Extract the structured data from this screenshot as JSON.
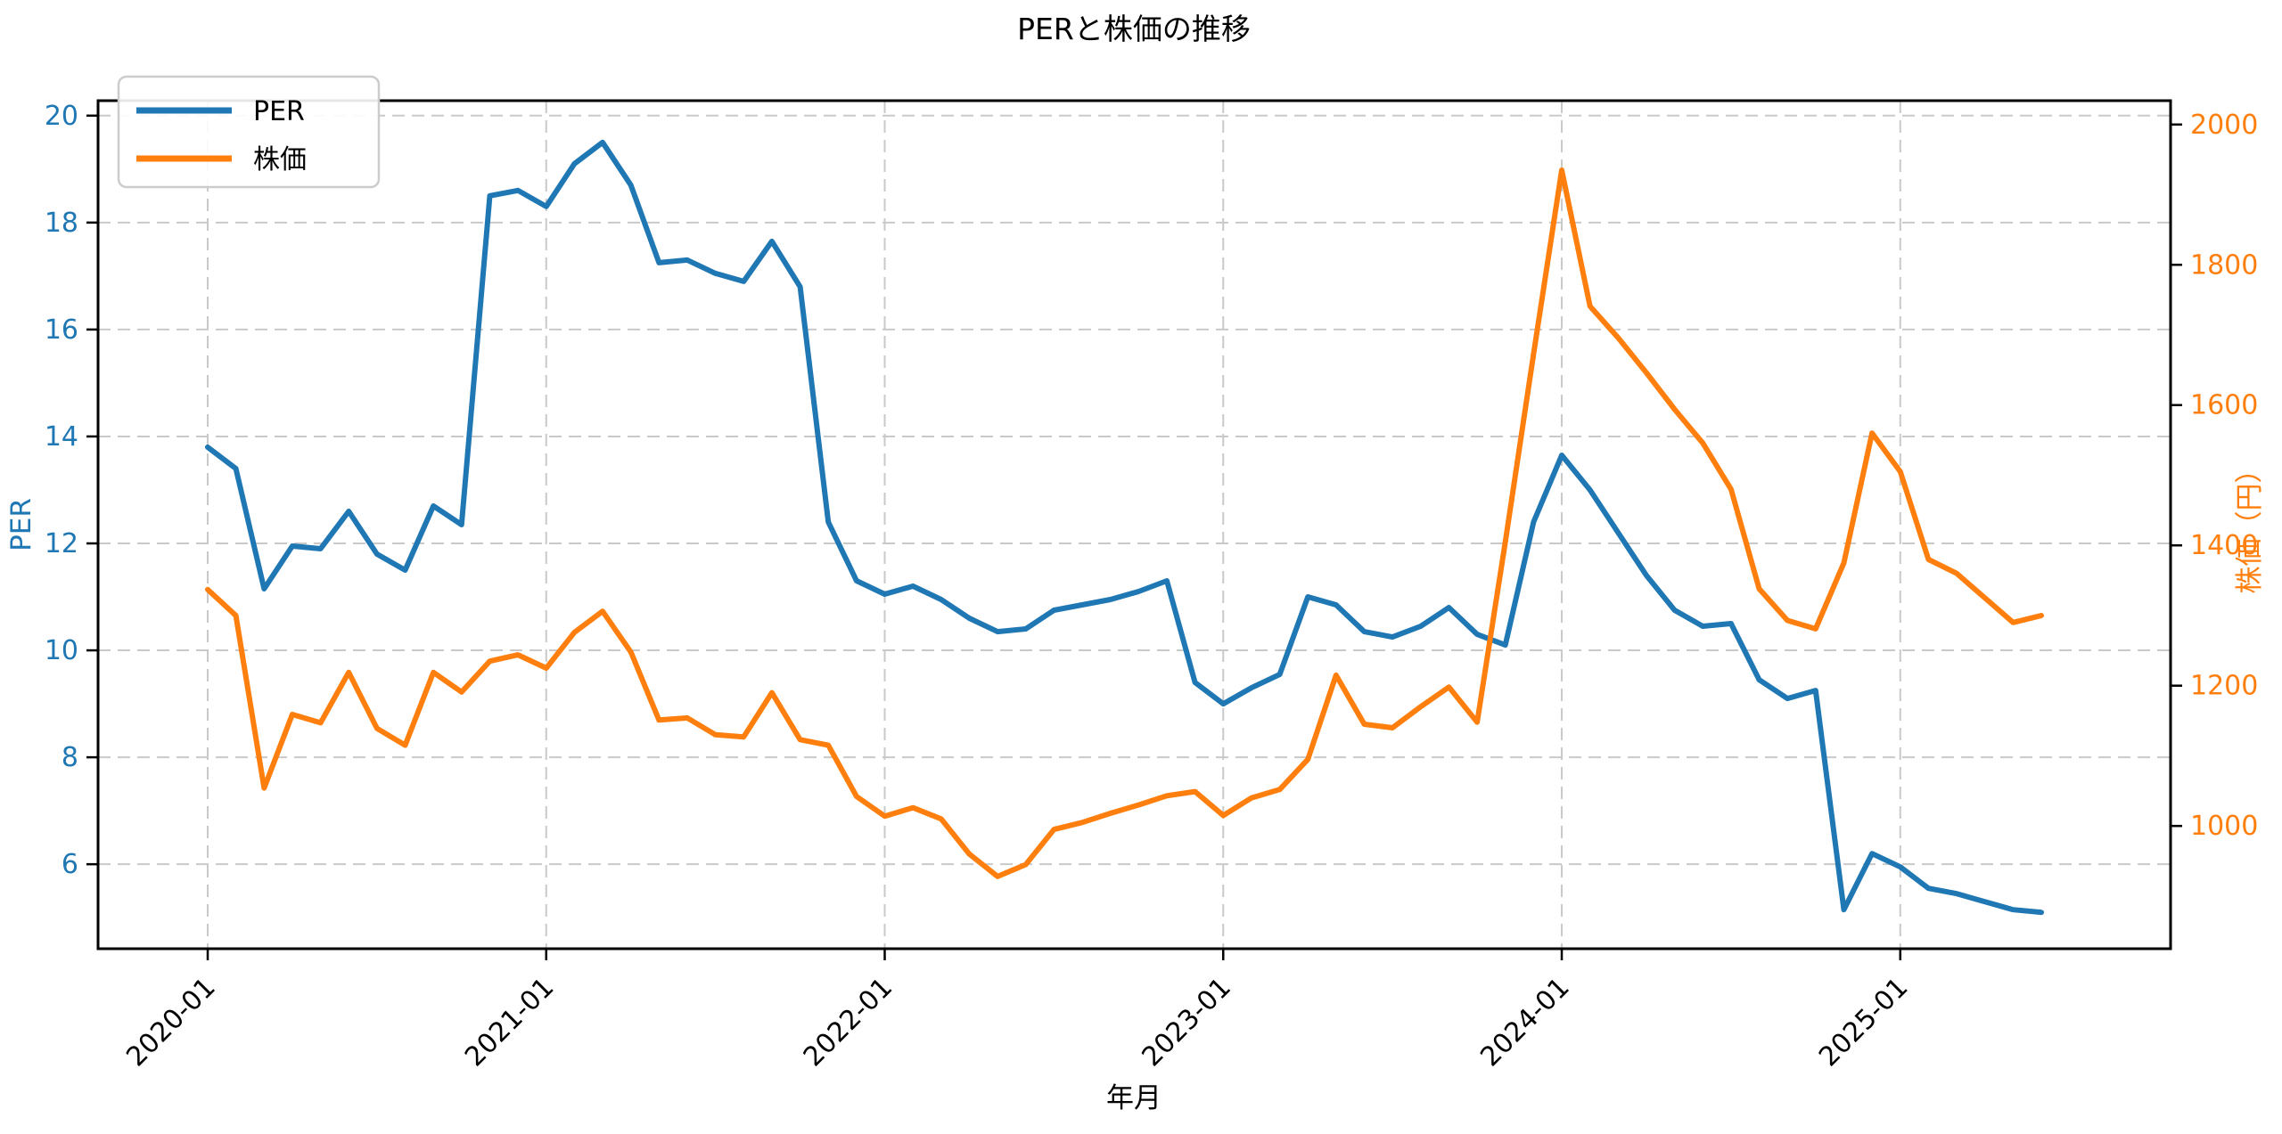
{
  "title": "PERと株価の推移",
  "legend": {
    "items": [
      "PER",
      "株価"
    ]
  },
  "colors": {
    "per_line": "#1f77b4",
    "price_line": "#ff7f0e",
    "grid": "#c9c9c9",
    "spine": "#000000",
    "tick_label_left": "#1f77b4",
    "tick_label_right": "#ff7f0e",
    "tick_label_x": "#000000",
    "background": "#ffffff"
  },
  "chart_data": {
    "type": "line",
    "title": "PERと株価の推移",
    "xlabel": "年月",
    "ylabel_left": "PER",
    "ylabel_right": "株価（円）",
    "grid": true,
    "legend_position": "upper left",
    "x": [
      "2020-01",
      "2020-02",
      "2020-03",
      "2020-04",
      "2020-05",
      "2020-06",
      "2020-07",
      "2020-08",
      "2020-09",
      "2020-10",
      "2020-11",
      "2020-12",
      "2021-01",
      "2021-02",
      "2021-03",
      "2021-04",
      "2021-05",
      "2021-06",
      "2021-07",
      "2021-08",
      "2021-09",
      "2021-10",
      "2021-11",
      "2021-12",
      "2022-01",
      "2022-02",
      "2022-03",
      "2022-04",
      "2022-05",
      "2022-06",
      "2022-07",
      "2022-08",
      "2022-09",
      "2022-10",
      "2022-11",
      "2022-12",
      "2023-01",
      "2023-02",
      "2023-03",
      "2023-04",
      "2023-05",
      "2023-06",
      "2023-07",
      "2023-08",
      "2023-09",
      "2023-10",
      "2023-11",
      "2023-12",
      "2024-01",
      "2024-02",
      "2024-03",
      "2024-04",
      "2024-05",
      "2024-06",
      "2024-07",
      "2024-08",
      "2024-09",
      "2024-10",
      "2024-11",
      "2024-12",
      "2025-01",
      "2025-02",
      "2025-03",
      "2025-04",
      "2025-05",
      "2025-06"
    ],
    "x_ticks": [
      "2020-01",
      "2021-01",
      "2022-01",
      "2023-01",
      "2024-01",
      "2025-01"
    ],
    "x_tick_indices": [
      0,
      12,
      24,
      36,
      48,
      60
    ],
    "left_ticks": [
      20,
      18,
      16,
      14,
      12,
      10,
      8,
      6
    ],
    "right_ticks": [
      2000,
      1800,
      1600,
      1400,
      1200,
      1000
    ],
    "left_range": [
      4.42,
      20.28
    ],
    "right_range": [
      825,
      2034
    ],
    "series": [
      {
        "name": "PER",
        "axis": "left",
        "color": "#1f77b4",
        "values": [
          13.8,
          13.4,
          11.15,
          11.95,
          11.9,
          12.6,
          11.8,
          11.5,
          12.7,
          12.35,
          18.5,
          18.6,
          18.3,
          19.1,
          19.5,
          18.7,
          17.25,
          17.3,
          17.05,
          16.9,
          17.65,
          16.8,
          12.4,
          11.3,
          11.05,
          11.2,
          10.95,
          10.6,
          10.35,
          10.4,
          10.75,
          10.85,
          10.95,
          11.1,
          11.3,
          9.4,
          9.0,
          9.3,
          9.55,
          11.0,
          10.85,
          10.35,
          10.25,
          10.45,
          10.8,
          10.3,
          10.1,
          12.4,
          13.65,
          13.0,
          12.2,
          11.4,
          10.75,
          10.45,
          10.5,
          9.45,
          9.1,
          9.25,
          5.15,
          6.2,
          5.95,
          5.55,
          5.45,
          5.3,
          5.15,
          5.1
        ]
      },
      {
        "name": "株価",
        "axis": "right",
        "color": "#ff7f0e",
        "values": [
          1337,
          1300,
          1054,
          1159,
          1147,
          1219,
          1139,
          1115,
          1219,
          1191,
          1235,
          1244,
          1225,
          1276,
          1306,
          1248,
          1151,
          1154,
          1130,
          1127,
          1190,
          1123,
          1115,
          1042,
          1014,
          1026,
          1010,
          960,
          928,
          945,
          995,
          1005,
          1018,
          1030,
          1043,
          1049,
          1015,
          1040,
          1052,
          1095,
          1215,
          1145,
          1140,
          1170,
          1198,
          1148,
          1405,
          1673,
          1935,
          1741,
          1696,
          1646,
          1594,
          1546,
          1480,
          1338,
          1293,
          1281,
          1375,
          1560,
          1505,
          1380,
          1360,
          1325,
          1290,
          1300
        ]
      }
    ]
  }
}
